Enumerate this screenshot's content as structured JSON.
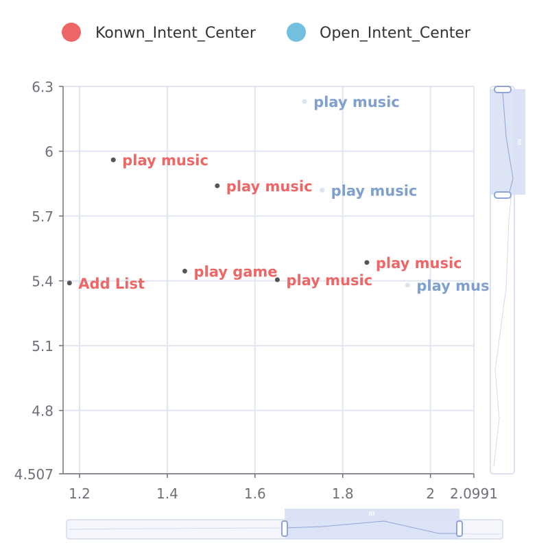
{
  "chart_data": {
    "type": "scatter",
    "title": "",
    "xlabel": "",
    "ylabel": "",
    "xlim": [
      1.1625,
      2.0991
    ],
    "ylim": [
      4.507,
      6.3
    ],
    "x_ticks": [
      "1.2",
      "1.4",
      "1.6",
      "1.8",
      "2",
      "2.0991"
    ],
    "y_ticks": [
      "4.507",
      "4.8",
      "5.1",
      "5.4",
      "5.7",
      "6",
      "6.3"
    ],
    "grid": true,
    "legend_position": "top-center",
    "series": [
      {
        "name": "Konwn_Intent_Center",
        "color": "#ee6666",
        "points": [
          {
            "x": 1.277,
            "y": 5.96,
            "label": "play music"
          },
          {
            "x": 1.514,
            "y": 5.84,
            "label": "play music"
          },
          {
            "x": 1.855,
            "y": 5.485,
            "label": "play music"
          },
          {
            "x": 1.44,
            "y": 5.445,
            "label": "play game"
          },
          {
            "x": 1.651,
            "y": 5.405,
            "label": "play music"
          },
          {
            "x": 1.177,
            "y": 5.39,
            "label": "Add List"
          }
        ]
      },
      {
        "name": "Open_Intent_Center",
        "color": "#73c0de",
        "label_color": "#7f9fce",
        "points": [
          {
            "x": 1.713,
            "y": 6.23,
            "label": "play music"
          },
          {
            "x": 1.753,
            "y": 5.82,
            "label": "play music"
          },
          {
            "x": 1.948,
            "y": 5.38,
            "label": "play music"
          }
        ]
      }
    ],
    "legend_marker_colors": [
      "#ee6666",
      "#73c0de"
    ],
    "marker_color": "#555555",
    "data_zoom": {
      "x": {
        "start_percent": 50,
        "end_percent": 90
      },
      "y": {
        "start_percent": 73,
        "end_percent": 100
      }
    }
  }
}
